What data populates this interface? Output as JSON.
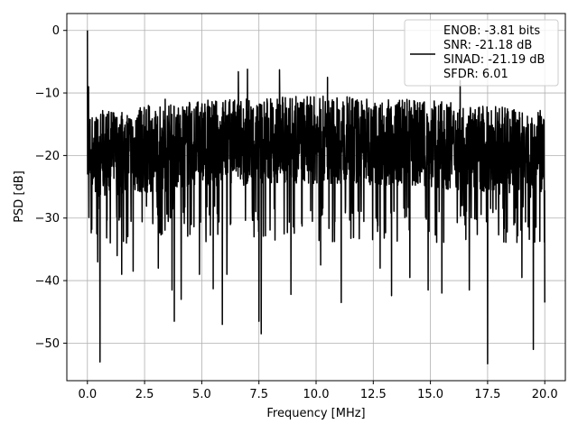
{
  "chart_data": {
    "type": "line",
    "title": "",
    "xlabel": "Frequency [MHz]",
    "ylabel": "PSD [dB]",
    "xlim": [
      -0.9,
      20.9
    ],
    "ylim": [
      -56,
      2.7
    ],
    "x_ticks": [
      0.0,
      2.5,
      5.0,
      7.5,
      10.0,
      12.5,
      15.0,
      17.5,
      20.0
    ],
    "x_tick_labels": [
      "0.0",
      "2.5",
      "5.0",
      "7.5",
      "10.0",
      "12.5",
      "15.0",
      "17.5",
      "20.0"
    ],
    "y_ticks": [
      0,
      -10,
      -20,
      -30,
      -40,
      -50
    ],
    "y_tick_labels": [
      "0",
      "−10",
      "−20",
      "−30",
      "−40",
      "−50"
    ],
    "grid": true,
    "legend_position": "top-right",
    "line_color": "#000000",
    "series": [
      {
        "name": "ENOB: -3.81 bits\nSNR: -21.18 dB\nSINAD: -21.19 dB\nSFDR: 6.01",
        "x_range": [
          0,
          20
        ],
        "noise_floor_band": [
          -30,
          -10
        ],
        "peaks": [
          {
            "x": 0.0,
            "y": 0.0
          },
          {
            "x": 0.05,
            "y": -9.0
          },
          {
            "x": 3.4,
            "y": -11.0
          },
          {
            "x": 6.6,
            "y": -6.6
          },
          {
            "x": 7.0,
            "y": -6.2
          },
          {
            "x": 8.4,
            "y": -6.3
          },
          {
            "x": 10.5,
            "y": -7.5
          },
          {
            "x": 13.3,
            "y": -8.7
          },
          {
            "x": 16.3,
            "y": -8.0
          },
          {
            "x": 19.8,
            "y": -12.8
          }
        ],
        "dips": [
          {
            "x": 0.55,
            "y": -53.0
          },
          {
            "x": 0.45,
            "y": -37.0
          },
          {
            "x": 1.3,
            "y": -36.0
          },
          {
            "x": 1.5,
            "y": -39.0
          },
          {
            "x": 2.0,
            "y": -38.5
          },
          {
            "x": 3.1,
            "y": -38.0
          },
          {
            "x": 3.7,
            "y": -41.5
          },
          {
            "x": 3.8,
            "y": -46.5
          },
          {
            "x": 4.1,
            "y": -43.0
          },
          {
            "x": 4.9,
            "y": -39.0
          },
          {
            "x": 5.5,
            "y": -41.3
          },
          {
            "x": 5.9,
            "y": -47.0
          },
          {
            "x": 6.1,
            "y": -39.0
          },
          {
            "x": 7.6,
            "y": -48.5
          },
          {
            "x": 7.5,
            "y": -46.5
          },
          {
            "x": 8.9,
            "y": -42.2
          },
          {
            "x": 10.2,
            "y": -37.5
          },
          {
            "x": 11.1,
            "y": -43.5
          },
          {
            "x": 12.8,
            "y": -38.0
          },
          {
            "x": 13.3,
            "y": -42.4
          },
          {
            "x": 14.1,
            "y": -39.5
          },
          {
            "x": 14.9,
            "y": -41.5
          },
          {
            "x": 15.5,
            "y": -42.0
          },
          {
            "x": 16.7,
            "y": -41.5
          },
          {
            "x": 17.5,
            "y": -53.3
          },
          {
            "x": 19.0,
            "y": -39.5
          },
          {
            "x": 19.5,
            "y": -51.0
          },
          {
            "x": 20.0,
            "y": -43.5
          }
        ]
      }
    ]
  }
}
